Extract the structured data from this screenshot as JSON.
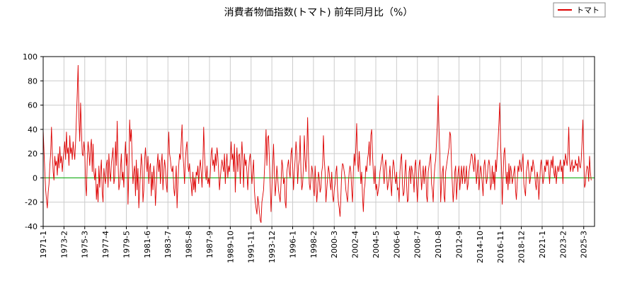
{
  "chart_data": {
    "type": "line",
    "title": "消費者物価指数(トマト) 前年同月比（%）",
    "legend_position": "top-right",
    "grid": true,
    "baseline": 0,
    "baseline_color": "#00aa00",
    "ylim": [
      -40,
      100
    ],
    "yticks": [
      -40,
      -20,
      0,
      20,
      40,
      60,
      80,
      100
    ],
    "categories": [
      "1971-1",
      null,
      null,
      null,
      null,
      null,
      null,
      null,
      null,
      null,
      null,
      null,
      null,
      null,
      null,
      null,
      null,
      null,
      null,
      null,
      null,
      null,
      null,
      null,
      null,
      "1973-2",
      null,
      null,
      null,
      null,
      null,
      null,
      null,
      null,
      null,
      null,
      null,
      null,
      null,
      null,
      null,
      null,
      null,
      null,
      null,
      null,
      null,
      null,
      null,
      null,
      "1975-3",
      null,
      null,
      null,
      null,
      null,
      null,
      null,
      null,
      null,
      null,
      null,
      null,
      null,
      null,
      null,
      null,
      null,
      null,
      null,
      null,
      null,
      null,
      null,
      null,
      "1977-4",
      null,
      null,
      null,
      null,
      null,
      null,
      null,
      null,
      null,
      null,
      null,
      null,
      null,
      null,
      null,
      null,
      null,
      null,
      null,
      null,
      null,
      null,
      null,
      null,
      "1979-5",
      null,
      null,
      null,
      null,
      null,
      null,
      null,
      null,
      null,
      null,
      null,
      null,
      null,
      null,
      null,
      null,
      null,
      null,
      null,
      null,
      null,
      null,
      null,
      null,
      "1981-6",
      null,
      null,
      null,
      null,
      null,
      null,
      null,
      null,
      null,
      null,
      null,
      null,
      null,
      null,
      null,
      null,
      null,
      null,
      null,
      null,
      null,
      null,
      null,
      null,
      "1983-7",
      null,
      null,
      null,
      null,
      null,
      null,
      null,
      null,
      null,
      null,
      null,
      null,
      null,
      null,
      null,
      null,
      null,
      null,
      null,
      null,
      null,
      null,
      null,
      null,
      "1985-8",
      null,
      null,
      null,
      null,
      null,
      null,
      null,
      null,
      null,
      null,
      null,
      null,
      null,
      null,
      null,
      null,
      null,
      null,
      null,
      null,
      null,
      null,
      null,
      null,
      "1987-9",
      null,
      null,
      null,
      null,
      null,
      null,
      null,
      null,
      null,
      null,
      null,
      null,
      null,
      null,
      null,
      null,
      null,
      null,
      null,
      null,
      null,
      null,
      null,
      null,
      "1989-10",
      null,
      null,
      null,
      null,
      null,
      null,
      null,
      null,
      null,
      null,
      null,
      null,
      null,
      null,
      null,
      null,
      null,
      null,
      null,
      null,
      null,
      null,
      null,
      null,
      "1991-11",
      null,
      null,
      null,
      null,
      null,
      null,
      null,
      null,
      null,
      null,
      null,
      null,
      null,
      null,
      null,
      null,
      null,
      null,
      null,
      null,
      null,
      null,
      null,
      null,
      "1993-12",
      null,
      null,
      null,
      null,
      null,
      null,
      null,
      null,
      null,
      null,
      null,
      null,
      null,
      null,
      null,
      null,
      null,
      null,
      null,
      null,
      null,
      null,
      null,
      null,
      "1996-1",
      null,
      null,
      null,
      null,
      null,
      null,
      null,
      null,
      null,
      null,
      null,
      null,
      null,
      null,
      null,
      null,
      null,
      null,
      null,
      null,
      null,
      null,
      null,
      null,
      "1998-2",
      null,
      null,
      null,
      null,
      null,
      null,
      null,
      null,
      null,
      null,
      null,
      null,
      null,
      null,
      null,
      null,
      null,
      null,
      null,
      null,
      null,
      null,
      null,
      null,
      "2000-3",
      null,
      null,
      null,
      null,
      null,
      null,
      null,
      null,
      null,
      null,
      null,
      null,
      null,
      null,
      null,
      null,
      null,
      null,
      null,
      null,
      null,
      null,
      null,
      null,
      "2002-4",
      null,
      null,
      null,
      null,
      null,
      null,
      null,
      null,
      null,
      null,
      null,
      null,
      null,
      null,
      null,
      null,
      null,
      null,
      null,
      null,
      null,
      null,
      null,
      null,
      "2004-5",
      null,
      null,
      null,
      null,
      null,
      null,
      null,
      null,
      null,
      null,
      null,
      null,
      null,
      null,
      null,
      null,
      null,
      null,
      null,
      null,
      null,
      null,
      null,
      null,
      "2006-6",
      null,
      null,
      null,
      null,
      null,
      null,
      null,
      null,
      null,
      null,
      null,
      null,
      null,
      null,
      null,
      null,
      null,
      null,
      null,
      null,
      null,
      null,
      null,
      null,
      "2008-7",
      null,
      null,
      null,
      null,
      null,
      null,
      null,
      null,
      null,
      null,
      null,
      null,
      null,
      null,
      null,
      null,
      null,
      null,
      null,
      null,
      null,
      null,
      null,
      null,
      "2010-8",
      null,
      null,
      null,
      null,
      null,
      null,
      null,
      null,
      null,
      null,
      null,
      null,
      null,
      null,
      null,
      null,
      null,
      null,
      null,
      null,
      null,
      null,
      null,
      null,
      "2012-9",
      null,
      null,
      null,
      null,
      null,
      null,
      null,
      null,
      null,
      null,
      null,
      null,
      null,
      null,
      null,
      null,
      null,
      null,
      null,
      null,
      null,
      null,
      null,
      null,
      "2014-10",
      null,
      null,
      null,
      null,
      null,
      null,
      null,
      null,
      null,
      null,
      null,
      null,
      null,
      null,
      null,
      null,
      null,
      null,
      null,
      null,
      null,
      null,
      null,
      null,
      "2016-11",
      null,
      null,
      null,
      null,
      null,
      null,
      null,
      null,
      null,
      null,
      null,
      null,
      null,
      null,
      null,
      null,
      null,
      null,
      null,
      null,
      null,
      null,
      null,
      null,
      "2018-12",
      null,
      null,
      null,
      null,
      null,
      null,
      null,
      null,
      null,
      null,
      null,
      null,
      null,
      null,
      null,
      null,
      null,
      null,
      null,
      null,
      null,
      null,
      null,
      null,
      "2021-1",
      null,
      null,
      null,
      null,
      null,
      null,
      null,
      null,
      null,
      null,
      null,
      null,
      null,
      null,
      null,
      null,
      null,
      null,
      null,
      null,
      null,
      null,
      null,
      null,
      "2023-2",
      null,
      null,
      null,
      null,
      null,
      null,
      null,
      null,
      null,
      null,
      null,
      null,
      null,
      null,
      null,
      null,
      null,
      null,
      null,
      null,
      null,
      null,
      null,
      null,
      "2025-3",
      null,
      null,
      null,
      null,
      null,
      null,
      null,
      null,
      null
    ],
    "series": [
      {
        "name": "トマト",
        "color": "#dd0000",
        "values": [
          40,
          22,
          5,
          -10,
          -18,
          -25,
          -12,
          -5,
          10,
          20,
          42,
          20,
          5,
          -2,
          18,
          10,
          14,
          2,
          20,
          8,
          26,
          12,
          18,
          5,
          15,
          22,
          30,
          15,
          38,
          20,
          25,
          10,
          35,
          20,
          25,
          15,
          30,
          22,
          15,
          30,
          50,
          70,
          93,
          50,
          30,
          62,
          40,
          20,
          18,
          30,
          22,
          -5,
          -15,
          15,
          30,
          22,
          10,
          25,
          32,
          5,
          28,
          5,
          -2,
          8,
          -18,
          -5,
          -20,
          10,
          -8,
          5,
          15,
          -12,
          -20,
          8,
          0,
          -5,
          10,
          15,
          -8,
          20,
          5,
          -3,
          12,
          18,
          25,
          -5,
          0,
          30,
          10,
          47,
          15,
          -10,
          -5,
          8,
          20,
          -2,
          5,
          -8,
          15,
          30,
          10,
          20,
          -22,
          5,
          48,
          30,
          40,
          15,
          -5,
          5,
          10,
          -15,
          15,
          -10,
          8,
          -25,
          -10,
          5,
          20,
          10,
          -20,
          -10,
          15,
          25,
          12,
          5,
          18,
          -5,
          8,
          12,
          -15,
          5,
          -10,
          10,
          0,
          -23,
          -8,
          10,
          20,
          5,
          15,
          -5,
          12,
          20,
          -10,
          5,
          15,
          8,
          -5,
          -12,
          18,
          38,
          20,
          15,
          8,
          5,
          10,
          -8,
          -15,
          -5,
          10,
          -25,
          -5,
          10,
          20,
          15,
          30,
          44,
          20,
          10,
          -5,
          15,
          25,
          30,
          10,
          5,
          12,
          0,
          -5,
          -15,
          5,
          -10,
          0,
          -12,
          5,
          2,
          10,
          -5,
          8,
          15,
          5,
          -8,
          10,
          42,
          20,
          5,
          -2,
          10,
          -5,
          0,
          -8,
          5,
          20,
          25,
          10,
          15,
          5,
          20,
          10,
          25,
          18,
          5,
          -10,
          0,
          8,
          15,
          10,
          5,
          20,
          -5,
          10,
          20,
          0,
          10,
          5,
          15,
          30,
          15,
          20,
          5,
          28,
          -12,
          10,
          25,
          5,
          18,
          20,
          -5,
          15,
          30,
          15,
          -8,
          20,
          10,
          15,
          5,
          -10,
          5,
          15,
          20,
          10,
          -5,
          5,
          15,
          -10,
          -20,
          -25,
          -30,
          -15,
          -20,
          -28,
          -35,
          -37,
          -20,
          -15,
          -10,
          5,
          20,
          40,
          10,
          33,
          35,
          15,
          -5,
          -28,
          -10,
          10,
          28,
          5,
          -15,
          -5,
          10,
          0,
          -10,
          -15,
          -20,
          -5,
          15,
          10,
          -5,
          0,
          -20,
          -25,
          5,
          10,
          15,
          5,
          0,
          20,
          25,
          10,
          -10,
          5,
          15,
          30,
          20,
          -5,
          10,
          15,
          35,
          5,
          -10,
          -5,
          10,
          35,
          15,
          5,
          20,
          50,
          20,
          -5,
          -10,
          0,
          10,
          5,
          -8,
          -15,
          10,
          -5,
          -20,
          -10,
          5,
          0,
          -12,
          -8,
          5,
          10,
          35,
          15,
          5,
          -20,
          -10,
          0,
          10,
          5,
          -5,
          -10,
          5,
          -15,
          -20,
          -10,
          -5,
          5,
          10,
          -10,
          -20,
          -25,
          -32,
          -15,
          5,
          12,
          10,
          5,
          0,
          -10,
          -15,
          -20,
          -5,
          5,
          10,
          5,
          -10,
          -20,
          5,
          20,
          10,
          25,
          45,
          15,
          5,
          22,
          10,
          -5,
          5,
          -15,
          -28,
          -10,
          -5,
          10,
          5,
          15,
          20,
          30,
          10,
          35,
          40,
          20,
          5,
          -5,
          10,
          -10,
          -5,
          -15,
          -10,
          -5,
          5,
          10,
          15,
          20,
          5,
          -5,
          10,
          15,
          5,
          -10,
          -5,
          0,
          10,
          -5,
          -15,
          5,
          15,
          10,
          0,
          -5,
          5,
          -10,
          -8,
          -20,
          5,
          15,
          20,
          -5,
          -15,
          -12,
          5,
          15,
          -5,
          -20,
          -18,
          5,
          10,
          -5,
          10,
          5,
          0,
          -12,
          10,
          15,
          -5,
          -20,
          -5,
          10,
          15,
          5,
          -10,
          0,
          10,
          -5,
          5,
          10,
          -15,
          -20,
          5,
          10,
          15,
          20,
          -5,
          -10,
          -20,
          0,
          10,
          15,
          30,
          45,
          68,
          40,
          20,
          -20,
          -5,
          5,
          10,
          -15,
          -20,
          5,
          10,
          15,
          20,
          25,
          38,
          35,
          10,
          -5,
          -20,
          -10,
          5,
          10,
          -18,
          -5,
          5,
          10,
          -10,
          0,
          10,
          -5,
          5,
          10,
          -5,
          0,
          10,
          -10,
          -5,
          5,
          10,
          15,
          20,
          18,
          10,
          5,
          20,
          10,
          -5,
          5,
          15,
          -10,
          0,
          10,
          5,
          -5,
          -15,
          10,
          15,
          5,
          -5,
          0,
          10,
          15,
          10,
          -10,
          -5,
          10,
          -5,
          5,
          -10,
          15,
          5,
          20,
          30,
          45,
          62,
          30,
          10,
          -22,
          0,
          20,
          25,
          10,
          -5,
          5,
          -10,
          12,
          -5,
          10,
          5,
          -5,
          0,
          5,
          10,
          -10,
          -18,
          -5,
          10,
          5,
          15,
          10,
          5,
          12,
          20,
          -5,
          -10,
          -15,
          5,
          10,
          15,
          5,
          -5,
          0,
          10,
          5,
          15,
          10,
          5,
          -5,
          -10,
          5,
          0,
          -18,
          -5,
          10,
          15,
          5,
          -5,
          0,
          10,
          5,
          15,
          10,
          15,
          5,
          -5,
          10,
          15,
          8,
          18,
          5,
          0,
          10,
          -5,
          5,
          10,
          5,
          10,
          15,
          5,
          10,
          -5,
          15,
          10,
          20,
          15,
          10,
          20,
          42,
          15,
          5,
          10,
          15,
          5,
          10,
          8,
          15,
          10,
          12,
          5,
          18,
          10,
          8,
          15,
          30,
          48,
          20,
          -8,
          -5,
          5,
          10,
          8,
          -3,
          18,
          5,
          -2
        ]
      }
    ]
  }
}
